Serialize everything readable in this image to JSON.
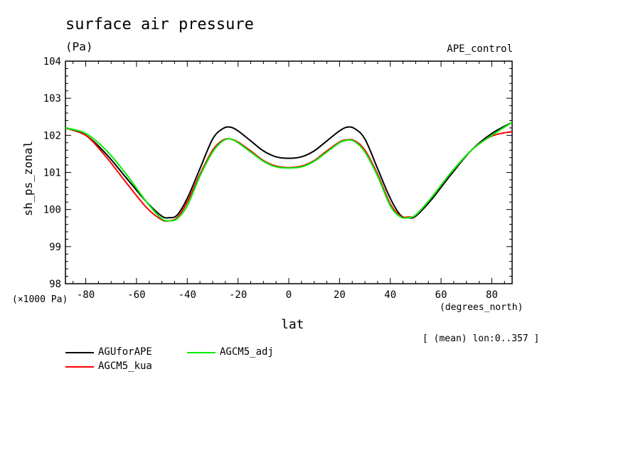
{
  "chart_data": {
    "type": "line",
    "title": "surface air pressure",
    "units": "(Pa)",
    "experiment": "APE_control",
    "ylabel": "sh_ps_zonal",
    "yscale_label": "(×1000 Pa)",
    "xlabel": "lat",
    "xunit_label": "(degrees_north)",
    "note": "[ (mean) lon:0..357 ]",
    "xlim": [
      -88,
      88
    ],
    "ylim": [
      98,
      104
    ],
    "xticks": [
      -80,
      -60,
      -40,
      -20,
      0,
      20,
      40,
      60,
      80
    ],
    "yticks": [
      98,
      99,
      100,
      101,
      102,
      103,
      104
    ],
    "xtick_labels": [
      "-80",
      "-60",
      "-40",
      "-20",
      "0",
      "20",
      "40",
      "60",
      "80"
    ],
    "ytick_labels": [
      "98",
      "99",
      "100",
      "101",
      "102",
      "103",
      "104"
    ],
    "x": [
      -88,
      -80,
      -72,
      -64,
      -56,
      -50,
      -47,
      -44,
      -40,
      -35,
      -30,
      -26,
      -23,
      -20,
      -15,
      -10,
      -5,
      0,
      5,
      10,
      15,
      20,
      23,
      26,
      30,
      35,
      40,
      44,
      47,
      50,
      56,
      64,
      72,
      80,
      88
    ],
    "series": [
      {
        "name": "AGUforAPE",
        "color": "#000000",
        "values": [
          102.2,
          102.0,
          101.5,
          100.85,
          100.2,
          99.82,
          99.78,
          99.85,
          100.3,
          101.1,
          101.9,
          102.18,
          102.22,
          102.12,
          101.85,
          101.58,
          101.42,
          101.38,
          101.42,
          101.58,
          101.85,
          102.12,
          102.22,
          102.18,
          101.9,
          101.1,
          100.3,
          99.85,
          99.78,
          99.82,
          100.25,
          100.95,
          101.6,
          102.05,
          102.35
        ]
      },
      {
        "name": "AGCM5_kua",
        "color": "#ff0000",
        "values": [
          102.2,
          102.0,
          101.42,
          100.72,
          100.05,
          99.72,
          99.7,
          99.78,
          100.2,
          100.95,
          101.6,
          101.87,
          101.9,
          101.82,
          101.58,
          101.32,
          101.17,
          101.13,
          101.17,
          101.32,
          101.58,
          101.82,
          101.88,
          101.85,
          101.6,
          100.95,
          100.15,
          99.82,
          99.8,
          99.85,
          100.3,
          101.0,
          101.6,
          101.98,
          102.1
        ]
      },
      {
        "name": "AGCM5_adj",
        "color": "#00ee00",
        "values": [
          102.2,
          102.05,
          101.6,
          100.95,
          100.2,
          99.75,
          99.7,
          99.75,
          100.1,
          100.9,
          101.55,
          101.85,
          101.9,
          101.8,
          101.55,
          101.3,
          101.15,
          101.12,
          101.15,
          101.3,
          101.55,
          101.8,
          101.87,
          101.83,
          101.55,
          100.9,
          100.1,
          99.8,
          99.78,
          99.85,
          100.3,
          101.0,
          101.6,
          102.0,
          102.35
        ]
      }
    ],
    "legend": "bottom-left"
  }
}
